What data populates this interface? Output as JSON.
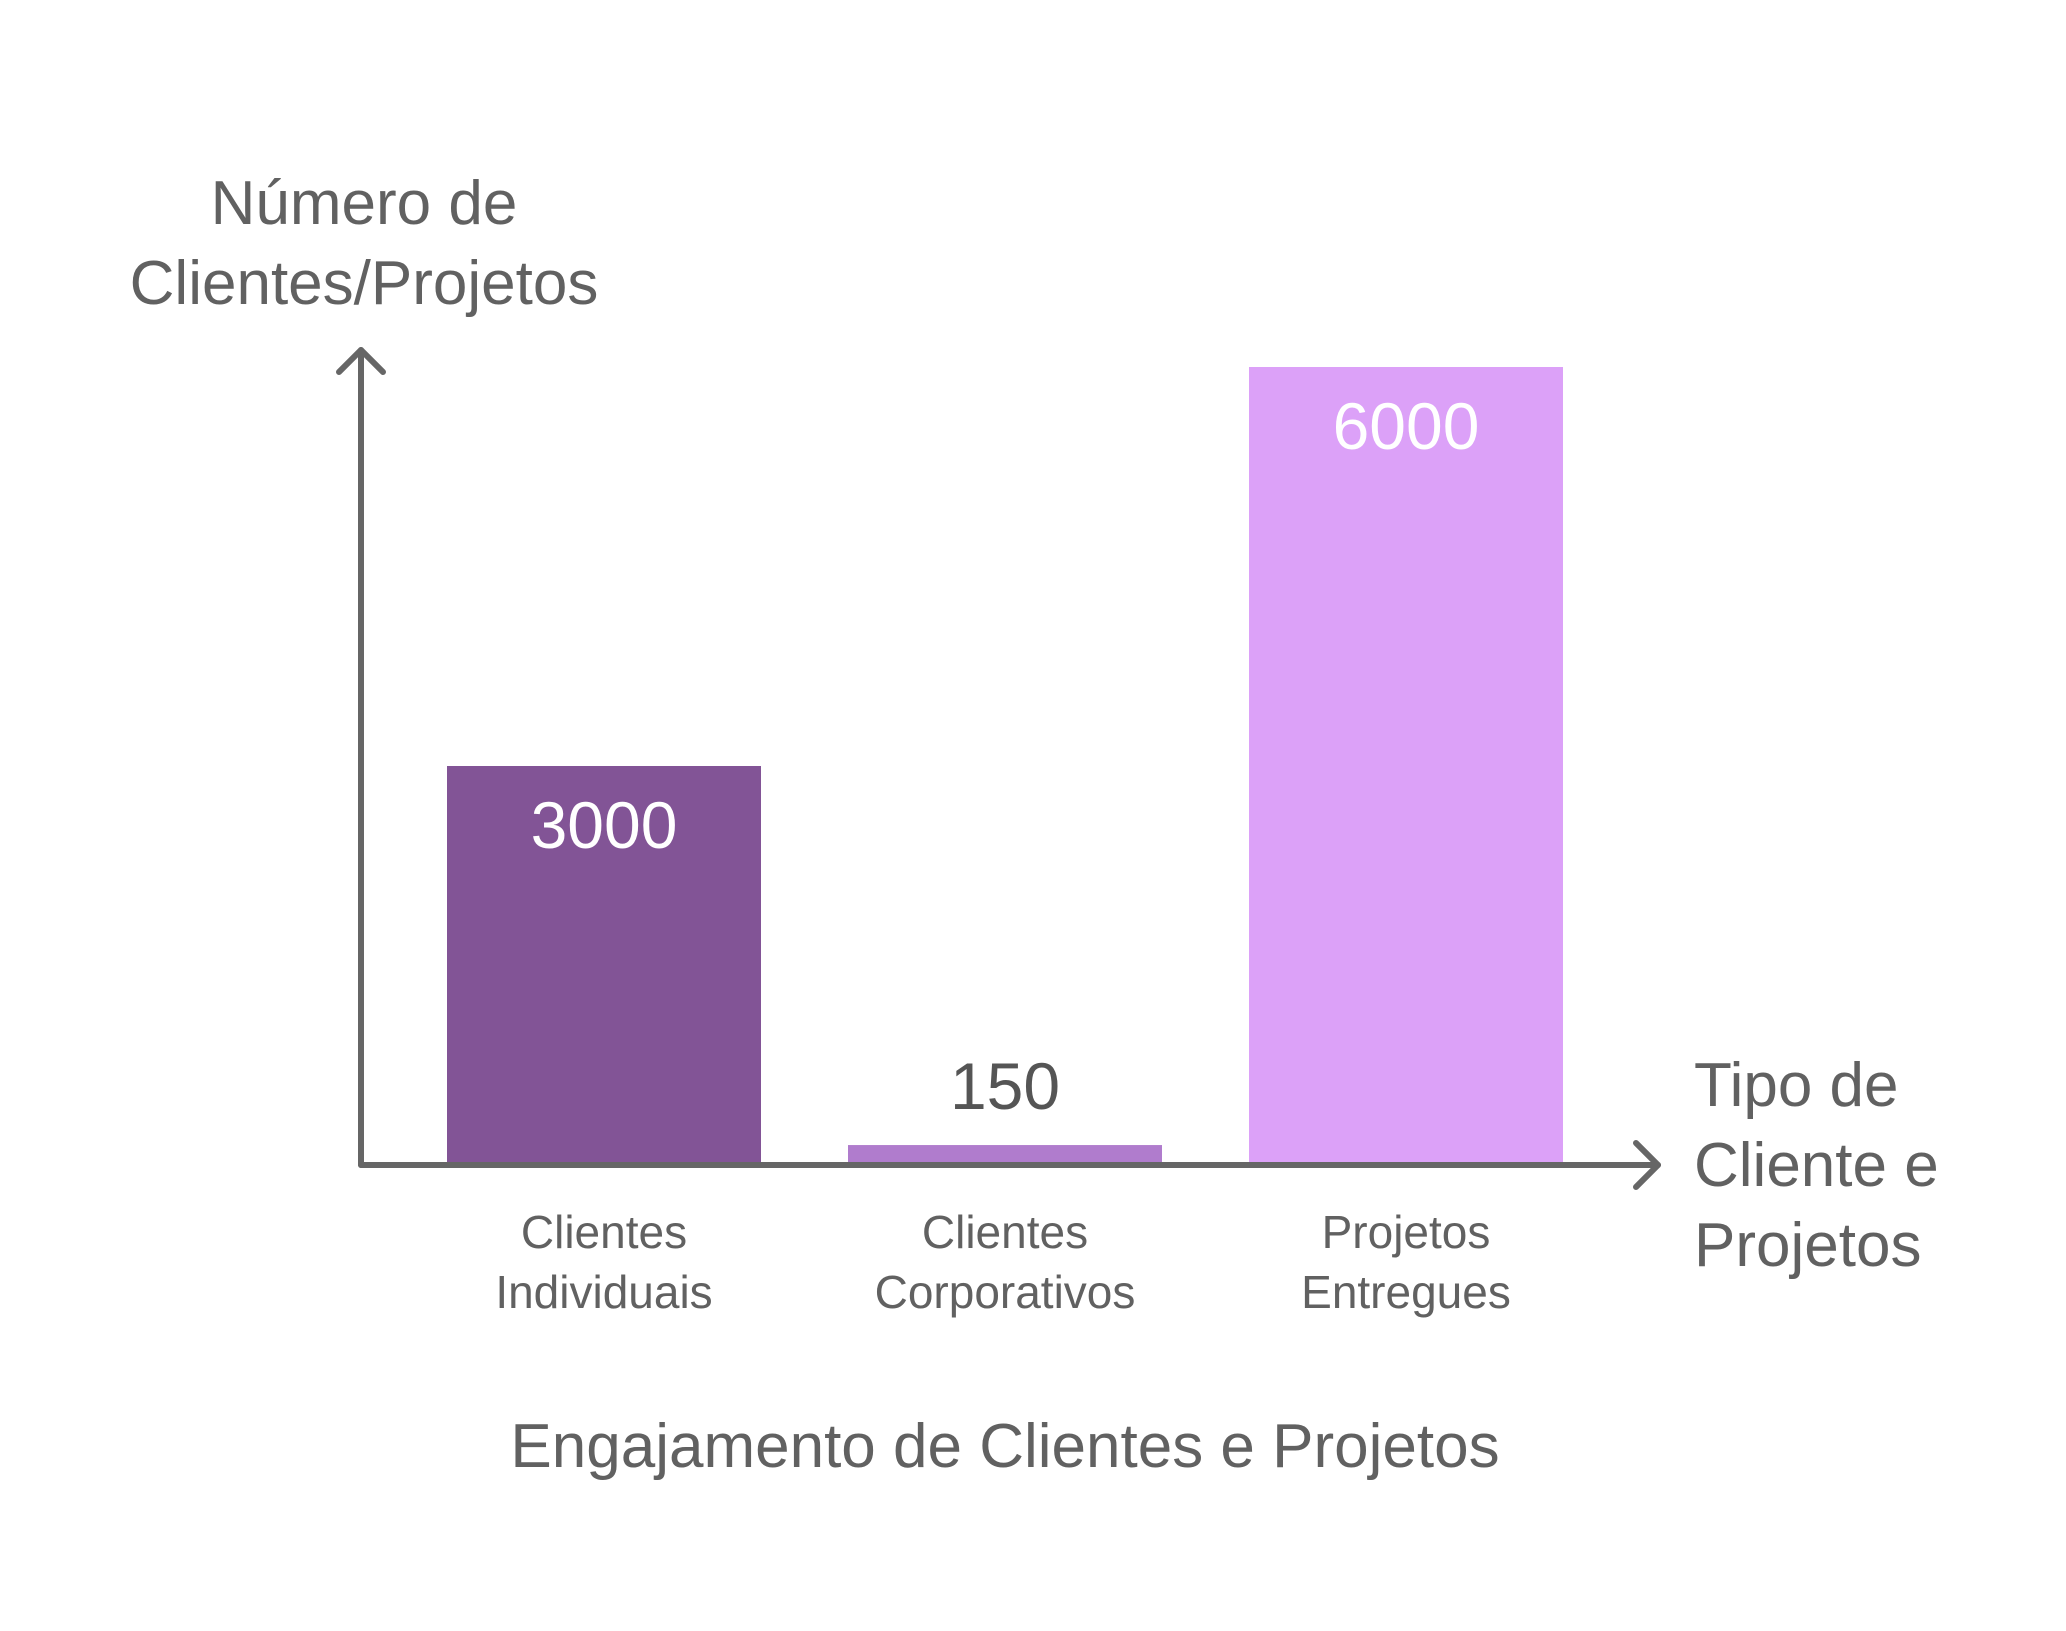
{
  "chart_data": {
    "type": "bar",
    "title": "Engajamento de Clientes e Projetos",
    "ylabel": [
      "Número de",
      "Clientes/Projetos"
    ],
    "xlabel": [
      "Tipo de",
      "Cliente e",
      "Projetos"
    ],
    "ylim": [
      0,
      6000
    ],
    "grid": false,
    "legend": "none",
    "categories": [
      [
        "Clientes",
        "Individuais"
      ],
      [
        "Clientes",
        "Corporativos"
      ],
      [
        "Projetos",
        "Entregues"
      ]
    ],
    "values": [
      3000,
      150,
      6000
    ],
    "data_labels": [
      "3000",
      "150",
      "6000"
    ],
    "colors": [
      "#825496",
      "#B07CCD",
      "#DCA1F8"
    ],
    "axis_color": "#666666"
  }
}
